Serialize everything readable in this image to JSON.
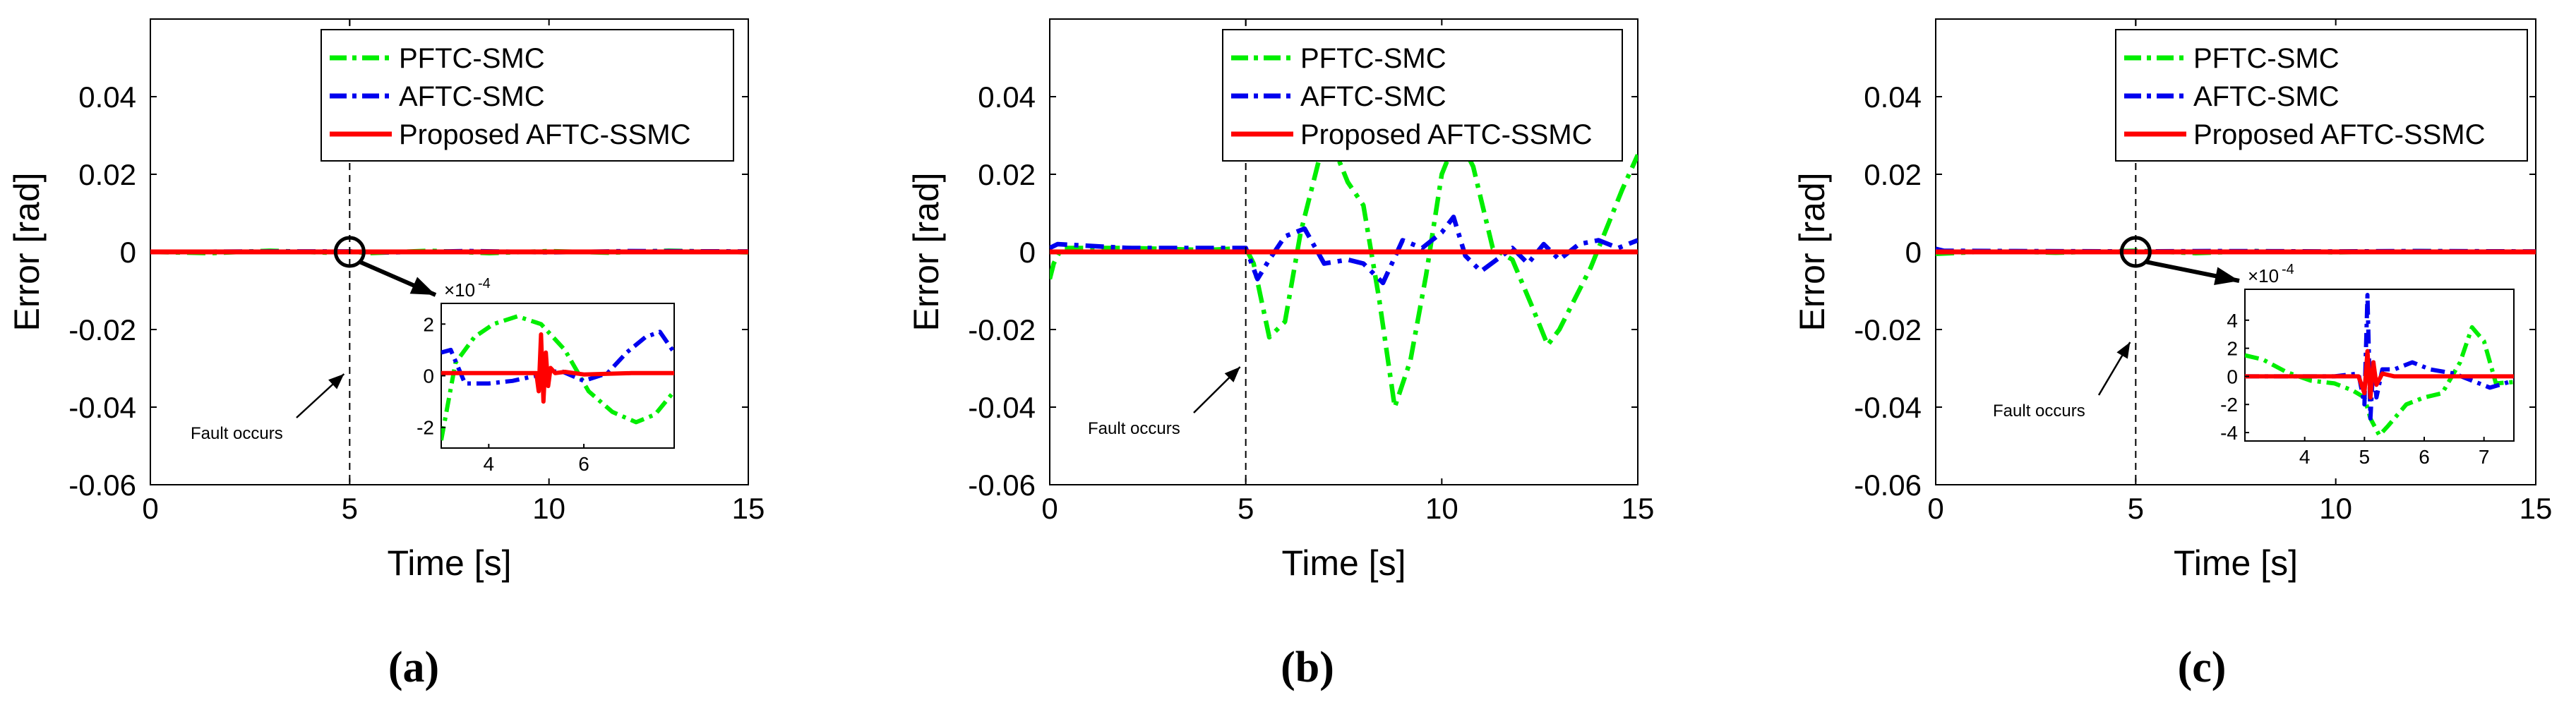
{
  "colors": {
    "pftc": "#00ee00",
    "aftc": "#0000ee",
    "proposed": "#ff0000",
    "axis": "#000000"
  },
  "chart_data": [
    {
      "type": "line",
      "caption": "(a)",
      "xlabel": "Time [s]",
      "ylabel": "Error [rad]",
      "xlim": [
        0,
        15
      ],
      "ylim": [
        -0.06,
        0.06
      ],
      "xticks": [
        0,
        5,
        10,
        15
      ],
      "yticks": [
        -0.06,
        -0.04,
        -0.02,
        0,
        0.02,
        0.04
      ],
      "ytick_labels": [
        "-0.06",
        "-0.04",
        "-0.02",
        "0",
        "0.02",
        "0.04"
      ],
      "legend": [
        "PFTC-SMC",
        "AFTC-SMC",
        "Proposed AFTC-SSMC"
      ],
      "annotation": "Fault occurs",
      "fault_time": 5,
      "series": [
        {
          "name": "PFTC-SMC",
          "x": [
            0,
            1.5,
            3,
            4.5,
            5,
            5.5,
            7,
            8.5,
            10,
            11.5,
            13,
            15
          ],
          "y": [
            0,
            -0.0003,
            0.0003,
            -0.0002,
            0.0001,
            -0.0003,
            0.0003,
            -0.0003,
            0.0002,
            -0.0002,
            0.0003,
            -0.0001
          ]
        },
        {
          "name": "AFTC-SMC",
          "x": [
            0,
            3,
            5,
            6,
            8,
            10,
            12,
            15
          ],
          "y": [
            0,
            0.0001,
            0.0001,
            -0.0001,
            0.0002,
            -0.0001,
            0.0002,
            0.0001
          ]
        },
        {
          "name": "Proposed AFTC-SSMC",
          "x": [
            0,
            15
          ],
          "y": [
            0,
            0
          ]
        }
      ],
      "inset": {
        "xlim": [
          3,
          7.9
        ],
        "ylim": [
          -2.8,
          2.8
        ],
        "xticks": [
          4,
          6
        ],
        "yticks": [
          -2,
          0,
          2
        ],
        "exponent": "×10",
        "exponent_power": "-4",
        "series": [
          {
            "name": "PFTC-SMC",
            "x": [
              3,
              3.3,
              3.7,
              4.1,
              4.6,
              5.1,
              5.6,
              6.1,
              6.6,
              7.1,
              7.5,
              7.9
            ],
            "y": [
              -2.5,
              0.5,
              1.5,
              2.0,
              2.3,
              2.0,
              1.0,
              -0.6,
              -1.4,
              -1.8,
              -1.5,
              -0.6
            ]
          },
          {
            "name": "AFTC-SMC",
            "x": [
              3,
              3.2,
              3.5,
              4,
              4.5,
              5,
              5.5,
              6,
              6.5,
              6.9,
              7.3,
              7.6,
              7.9
            ],
            "y": [
              0.9,
              1.0,
              -0.3,
              -0.3,
              -0.2,
              0.0,
              0.2,
              -0.2,
              0.1,
              0.9,
              1.5,
              1.7,
              0.9
            ]
          },
          {
            "name": "Proposed AFTC-SSMC",
            "x": [
              3,
              4.5,
              5.0,
              5.05,
              5.1,
              5.15,
              5.2,
              5.25,
              5.3,
              5.4,
              5.6,
              6.0,
              7.0,
              7.9
            ],
            "y": [
              0.1,
              0.1,
              0.1,
              -0.6,
              1.6,
              -1.0,
              0.9,
              -0.4,
              0.3,
              0.1,
              0.15,
              0.05,
              0.1,
              0.1
            ]
          }
        ]
      }
    },
    {
      "type": "line",
      "caption": "(b)",
      "xlabel": "Time [s]",
      "ylabel": "Error [rad]",
      "xlim": [
        0,
        15
      ],
      "ylim": [
        -0.06,
        0.06
      ],
      "xticks": [
        0,
        5,
        10,
        15
      ],
      "yticks": [
        -0.06,
        -0.04,
        -0.02,
        0,
        0.02,
        0.04
      ],
      "ytick_labels": [
        "-0.06",
        "-0.04",
        "-0.02",
        "0",
        "0.02",
        "0.04"
      ],
      "legend": [
        "PFTC-SMC",
        "AFTC-SMC",
        "Proposed AFTC-SSMC"
      ],
      "annotation": "Fault occurs",
      "fault_time": 5,
      "series": [
        {
          "name": "PFTC-SMC",
          "x": [
            0,
            0.1,
            0.3,
            2,
            4,
            5,
            5.2,
            5.6,
            6.0,
            6.4,
            6.9,
            7.2,
            7.6,
            8.0,
            8.4,
            8.8,
            9.2,
            9.6,
            10.0,
            10.4,
            10.8,
            11.3,
            11.8,
            12.3,
            12.7,
            13.0,
            13.4,
            13.8,
            14.2,
            14.6,
            15
          ],
          "y": [
            -0.007,
            -0.003,
            0.001,
            0.001,
            0.0005,
            0.001,
            -0.003,
            -0.022,
            -0.018,
            0.005,
            0.025,
            0.028,
            0.018,
            0.012,
            -0.012,
            -0.04,
            -0.028,
            -0.006,
            0.02,
            0.03,
            0.022,
            0.001,
            -0.002,
            -0.014,
            -0.024,
            -0.02,
            -0.012,
            -0.004,
            0.006,
            0.016,
            0.025
          ]
        },
        {
          "name": "AFTC-SMC",
          "x": [
            0,
            0.2,
            2,
            5,
            5.3,
            5.6,
            6.0,
            6.5,
            7.0,
            7.6,
            8.0,
            8.5,
            9.0,
            9.5,
            10.0,
            10.3,
            10.6,
            11.0,
            11.4,
            11.8,
            12.2,
            12.6,
            13.0,
            13.5,
            14.0,
            14.5,
            15
          ],
          "y": [
            0.001,
            0.002,
            0.001,
            0.001,
            -0.007,
            -0.002,
            0.004,
            0.006,
            -0.003,
            -0.002,
            -0.003,
            -0.008,
            0.003,
            0.001,
            0.005,
            0.009,
            -0.001,
            -0.005,
            -0.002,
            0.001,
            -0.003,
            0.002,
            -0.002,
            0.002,
            0.003,
            0.001,
            0.003
          ]
        },
        {
          "name": "Proposed AFTC-SSMC",
          "x": [
            0,
            15
          ],
          "y": [
            0,
            0
          ]
        }
      ]
    },
    {
      "type": "line",
      "caption": "(c)",
      "xlabel": "Time [s]",
      "ylabel": "Error [rad]",
      "xlim": [
        0,
        15
      ],
      "ylim": [
        -0.06,
        0.06
      ],
      "xticks": [
        0,
        5,
        10,
        15
      ],
      "yticks": [
        -0.06,
        -0.04,
        -0.02,
        0,
        0.02,
        0.04
      ],
      "ytick_labels": [
        "-0.06",
        "-0.04",
        "-0.02",
        "0",
        "0.02",
        "0.04"
      ],
      "legend": [
        "PFTC-SMC",
        "AFTC-SMC",
        "Proposed AFTC-SSMC"
      ],
      "annotation": "Fault occurs",
      "fault_time": 5,
      "series": [
        {
          "name": "PFTC-SMC",
          "x": [
            0,
            1.5,
            3,
            5,
            6.5,
            8,
            10,
            12,
            15
          ],
          "y": [
            -0.0005,
            0.0002,
            -0.0002,
            0.0003,
            -0.0003,
            0.0002,
            -0.0001,
            0.0002,
            0
          ]
        },
        {
          "name": "AFTC-SMC",
          "x": [
            0,
            0.2,
            2,
            5,
            7,
            10,
            12,
            15
          ],
          "y": [
            0.0008,
            0.0003,
            0.0002,
            0.0001,
            0.0002,
            0.0001,
            0.0002,
            0.0001
          ]
        },
        {
          "name": "Proposed AFTC-SSMC",
          "x": [
            0,
            15
          ],
          "y": [
            0,
            0
          ]
        }
      ],
      "inset": {
        "xlim": [
          3.0,
          7.5
        ],
        "ylim": [
          -4.6,
          6.2
        ],
        "xticks": [
          4,
          5,
          6,
          7
        ],
        "yticks": [
          -4,
          -2,
          0,
          2,
          4
        ],
        "exponent": "×10",
        "exponent_power": "-4",
        "series": [
          {
            "name": "PFTC-SMC",
            "x": [
              3.0,
              3.3,
              3.7,
              4.1,
              4.5,
              4.8,
              5.0,
              5.1,
              5.25,
              5.4,
              5.7,
              6.0,
              6.3,
              6.6,
              6.8,
              7.0,
              7.2,
              7.5
            ],
            "y": [
              1.5,
              1.2,
              0.3,
              -0.3,
              -0.5,
              -1.0,
              -1.5,
              -3.0,
              -4.2,
              -3.5,
              -2.0,
              -1.5,
              -1.2,
              1.0,
              3.5,
              2.5,
              -0.5,
              -0.4
            ]
          },
          {
            "name": "AFTC-SMC",
            "x": [
              3.0,
              4.5,
              4.9,
              5.0,
              5.05,
              5.1,
              5.15,
              5.2,
              5.3,
              5.5,
              5.8,
              6.1,
              6.5,
              6.8,
              7.1,
              7.5
            ],
            "y": [
              0,
              0,
              0.2,
              -2.0,
              5.8,
              -3.0,
              1.0,
              -1.5,
              0.5,
              0.5,
              1.0,
              0.5,
              0.2,
              -0.3,
              -0.8,
              -0.3
            ]
          },
          {
            "name": "Proposed AFTC-SSMC",
            "x": [
              3.0,
              4.9,
              5.0,
              5.05,
              5.1,
              5.15,
              5.2,
              5.3,
              5.5,
              6.0,
              7.5
            ],
            "y": [
              0,
              0,
              -1.2,
              1.8,
              -1.5,
              1.0,
              -0.6,
              0.2,
              0,
              0,
              0
            ]
          }
        ]
      }
    }
  ]
}
